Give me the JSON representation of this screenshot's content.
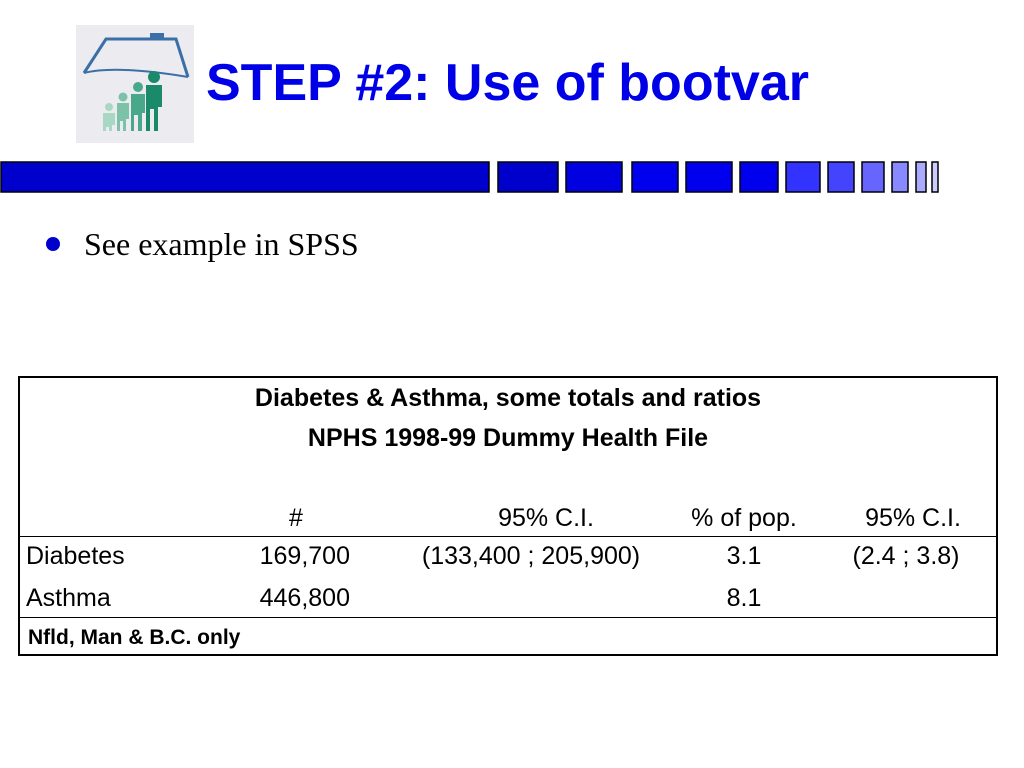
{
  "slide": {
    "title": "STEP #2: Use of bootvar",
    "title_color": "#0000e6",
    "accent_color": "#0000cc",
    "bullet_color": "#0000cc",
    "logo_icon": "family-home-icon"
  },
  "bullets": [
    {
      "text": "See example in SPSS"
    }
  ],
  "table": {
    "title_line1": "Diabetes & Asthma, some totals and ratios",
    "title_line2": "NPHS 1998-99 Dummy Health File",
    "headers": [
      "#",
      "95% C.I.",
      "% of pop.",
      "95% C.I."
    ],
    "rows": [
      {
        "label": "Diabetes",
        "count": "169,700",
        "ci": "(133,400 ; 205,900)",
        "pct": "3.1",
        "pct_ci": "(2.4 ; 3.8)"
      },
      {
        "label": "Asthma",
        "count": "446,800",
        "ci": "",
        "pct": "8.1",
        "pct_ci": ""
      }
    ],
    "footer": "Nfld, Man & B.C. only"
  }
}
